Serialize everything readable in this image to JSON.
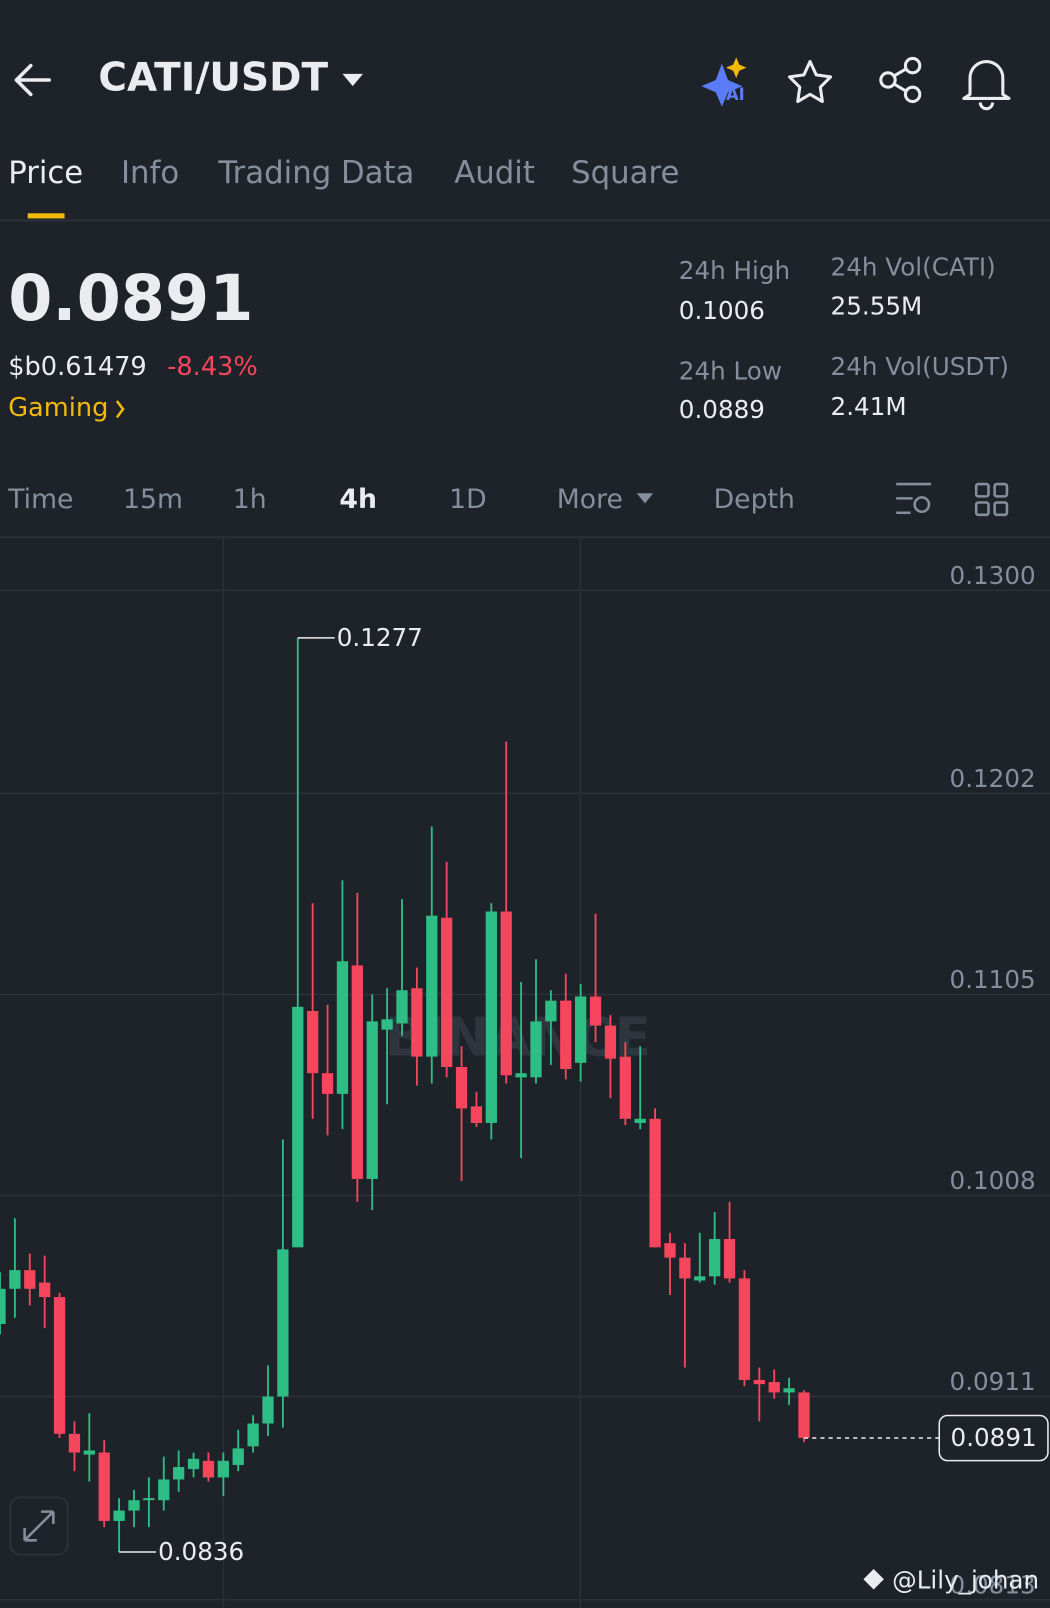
{
  "header": {
    "pair": "CATI/USDT",
    "ai": "AI"
  },
  "tabs": [
    "Price",
    "Info",
    "Trading Data",
    "Audit",
    "Square"
  ],
  "ticker": {
    "price": "0.0891",
    "fiat": "$b0.61479",
    "change": "-8.43%",
    "tag": "Gaming"
  },
  "stats": [
    {
      "label": "24h High",
      "value": "0.1006"
    },
    {
      "label": "24h Low",
      "value": "0.0889"
    },
    {
      "label": "24h Vol(CATI)",
      "value": "25.55M"
    },
    {
      "label": "24h Vol(USDT)",
      "value": "2.41M"
    }
  ],
  "intervals": [
    "Time",
    "15m",
    "1h",
    "4h",
    "1D",
    "More",
    "Depth"
  ],
  "chart_data": {
    "type": "candlestick",
    "up_color": "#2ebd85",
    "down_color": "#f6465d",
    "open": [
      0.0946,
      0.0963,
      0.0972,
      0.0966,
      0.0959,
      0.0893,
      0.0883,
      0.0884,
      0.0851,
      0.0856,
      0.0861,
      0.0861,
      0.0871,
      0.0876,
      0.088,
      0.0872,
      0.0878,
      0.0887,
      0.0898,
      0.0911,
      0.0983,
      0.1097,
      0.1067,
      0.1057,
      0.1119,
      0.1016,
      0.1088,
      0.1091,
      0.1108,
      0.1075,
      0.1142,
      0.107,
      0.1051,
      0.1043,
      0.1145,
      0.1065,
      0.1065,
      0.1092,
      0.1102,
      0.1072,
      0.1104,
      0.109,
      0.1075,
      0.1043,
      0.1045,
      0.0985,
      0.0978,
      0.0967,
      0.0969,
      0.0987,
      0.0968,
      0.0919,
      0.0918,
      0.0913,
      0.0913
    ],
    "high": [
      0.0971,
      0.0997,
      0.098,
      0.0979,
      0.0961,
      0.0899,
      0.0903,
      0.089,
      0.0862,
      0.0866,
      0.0872,
      0.0882,
      0.0885,
      0.0884,
      0.0884,
      0.0884,
      0.0895,
      0.0902,
      0.0926,
      0.1035,
      0.1277,
      0.1149,
      0.11,
      0.116,
      0.1154,
      0.1105,
      0.1108,
      0.1151,
      0.1118,
      0.1186,
      0.1169,
      0.108,
      0.1058,
      0.1149,
      0.1227,
      0.1111,
      0.1122,
      0.1107,
      0.1115,
      0.111,
      0.1144,
      0.1095,
      0.1082,
      0.108,
      0.105,
      0.099,
      0.0985,
      0.099,
      0.1,
      0.1005,
      0.0972,
      0.0925,
      0.0924,
      0.092,
      0.0914
    ],
    "low": [
      0.0941,
      0.0949,
      0.0955,
      0.0944,
      0.0891,
      0.0875,
      0.087,
      0.0848,
      0.0836,
      0.0848,
      0.0848,
      0.0856,
      0.0865,
      0.0872,
      0.087,
      0.0863,
      0.0875,
      0.0884,
      0.0892,
      0.0896,
      0.0983,
      0.1045,
      0.1037,
      0.104,
      0.1005,
      0.1001,
      0.1052,
      0.1085,
      0.1061,
      0.1062,
      0.1065,
      0.1015,
      0.1041,
      0.1035,
      0.1062,
      0.1026,
      0.1062,
      0.1071,
      0.1064,
      0.1063,
      0.1082,
      0.1055,
      0.1042,
      0.104,
      0.0983,
      0.096,
      0.0925,
      0.0966,
      0.0965,
      0.0966,
      0.0916,
      0.0899,
      0.091,
      0.0907,
      0.0889
    ],
    "close": [
      0.0963,
      0.0972,
      0.0963,
      0.0959,
      0.0893,
      0.0884,
      0.0885,
      0.0851,
      0.0856,
      0.0861,
      0.0862,
      0.0871,
      0.0877,
      0.0881,
      0.0872,
      0.088,
      0.0886,
      0.0898,
      0.0911,
      0.0982,
      0.1099,
      0.1067,
      0.1057,
      0.1121,
      0.1016,
      0.1092,
      0.1093,
      0.1107,
      0.1075,
      0.1143,
      0.107,
      0.105,
      0.1043,
      0.1145,
      0.1066,
      0.1067,
      0.1092,
      0.1102,
      0.1069,
      0.1104,
      0.109,
      0.1074,
      0.1045,
      0.1045,
      0.0983,
      0.0978,
      0.0968,
      0.0969,
      0.0987,
      0.0968,
      0.0919,
      0.0917,
      0.0913,
      0.0915,
      0.0891
    ],
    "ylim": [
      0.0809,
      0.1325
    ],
    "yticks": [
      {
        "value": 0.13,
        "label": "0.1300"
      },
      0.1202,
      0.1105,
      0.1008,
      0.0911,
      0.0813
    ],
    "grid": true,
    "high_label": {
      "value": 0.1277,
      "label": "0.1277"
    },
    "low_label": {
      "value": 0.0836,
      "label": "0.0836"
    },
    "last_price": {
      "value": 0.0891,
      "label": "0.0891"
    },
    "watermark": "BINANCE"
  },
  "watermark": "@Lily_johan"
}
